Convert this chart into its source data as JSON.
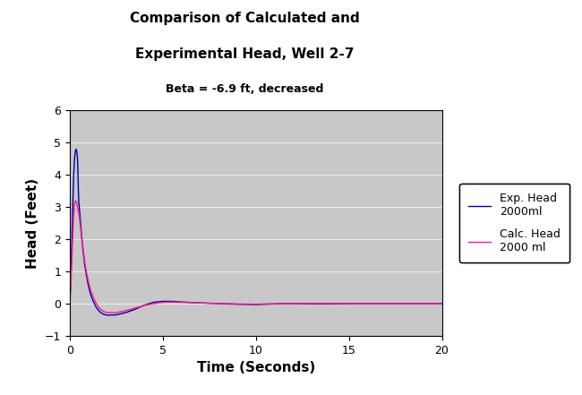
{
  "title_line1": "Comparison of Calculated and",
  "title_line2": "Experimental Head, Well 2-7",
  "subtitle": "Beta = -6.9 ft, decreased",
  "xlabel": "Time (Seconds)",
  "ylabel": "Head (Feet)",
  "ylim": [
    -1,
    6
  ],
  "xlim": [
    0,
    20
  ],
  "yticks": [
    -1,
    0,
    1,
    2,
    3,
    4,
    5,
    6
  ],
  "xticks": [
    0,
    5,
    10,
    15,
    20
  ],
  "bg_color": "#c8c8c8",
  "fig_color": "#ffffff",
  "exp_color": "#0000AA",
  "calc_color": "#FF1493",
  "legend_labels": [
    "Exp. Head\n2000ml",
    "Calc. Head\n2000 ml"
  ],
  "exp_t": [
    0,
    0.05,
    0.1,
    0.15,
    0.2,
    0.25,
    0.3,
    0.35,
    0.4,
    0.42,
    0.44,
    0.46,
    0.48,
    0.5,
    0.55,
    0.6,
    0.65,
    0.7,
    0.8,
    0.9,
    1.0,
    1.1,
    1.2,
    1.4,
    1.6,
    1.8,
    2.0,
    2.5,
    3.0,
    3.5,
    4.0,
    4.5,
    5.0,
    5.5,
    6.0,
    7.0,
    8.0,
    9.0,
    10.0,
    10.5,
    11.0,
    11.5,
    12.0,
    13.0,
    14.0,
    15.0,
    16.0,
    17.0,
    18.0,
    19.0,
    20.0
  ],
  "exp_h": [
    0,
    0.8,
    1.8,
    2.9,
    3.9,
    4.5,
    4.75,
    4.8,
    4.6,
    4.4,
    4.0,
    3.5,
    3.15,
    3.05,
    2.7,
    2.35,
    2.0,
    1.7,
    1.2,
    0.85,
    0.55,
    0.32,
    0.15,
    -0.1,
    -0.25,
    -0.33,
    -0.36,
    -0.35,
    -0.28,
    -0.18,
    -0.05,
    0.04,
    0.07,
    0.07,
    0.05,
    0.02,
    0.0,
    -0.02,
    -0.03,
    -0.02,
    -0.01,
    0.0,
    0.0,
    -0.01,
    -0.01,
    0.0,
    0.0,
    0.0,
    0.0,
    0.0,
    0.0
  ],
  "calc_t": [
    0,
    0.05,
    0.1,
    0.15,
    0.2,
    0.25,
    0.3,
    0.35,
    0.4,
    0.45,
    0.5,
    0.55,
    0.6,
    0.65,
    0.7,
    0.8,
    0.9,
    1.0,
    1.1,
    1.2,
    1.4,
    1.6,
    1.8,
    2.0,
    2.5,
    3.0,
    3.5,
    4.0,
    4.5,
    5.0,
    5.5,
    6.0,
    7.0,
    8.0,
    9.0,
    10.0,
    10.5,
    11.0,
    11.5,
    12.0,
    13.0,
    14.0,
    15.0,
    16.0,
    17.0,
    18.0,
    19.0,
    20.0
  ],
  "calc_h": [
    0,
    0.5,
    1.2,
    2.0,
    2.7,
    3.1,
    3.2,
    3.15,
    3.05,
    2.9,
    2.75,
    2.5,
    2.25,
    2.0,
    1.75,
    1.3,
    0.95,
    0.68,
    0.45,
    0.28,
    0.02,
    -0.15,
    -0.24,
    -0.28,
    -0.28,
    -0.22,
    -0.14,
    -0.06,
    0.0,
    0.04,
    0.05,
    0.04,
    0.02,
    0.0,
    -0.01,
    -0.02,
    -0.01,
    -0.01,
    0.0,
    0.0,
    0.0,
    0.0,
    0.0,
    0.0,
    0.0,
    0.0,
    0.0,
    0.0
  ]
}
